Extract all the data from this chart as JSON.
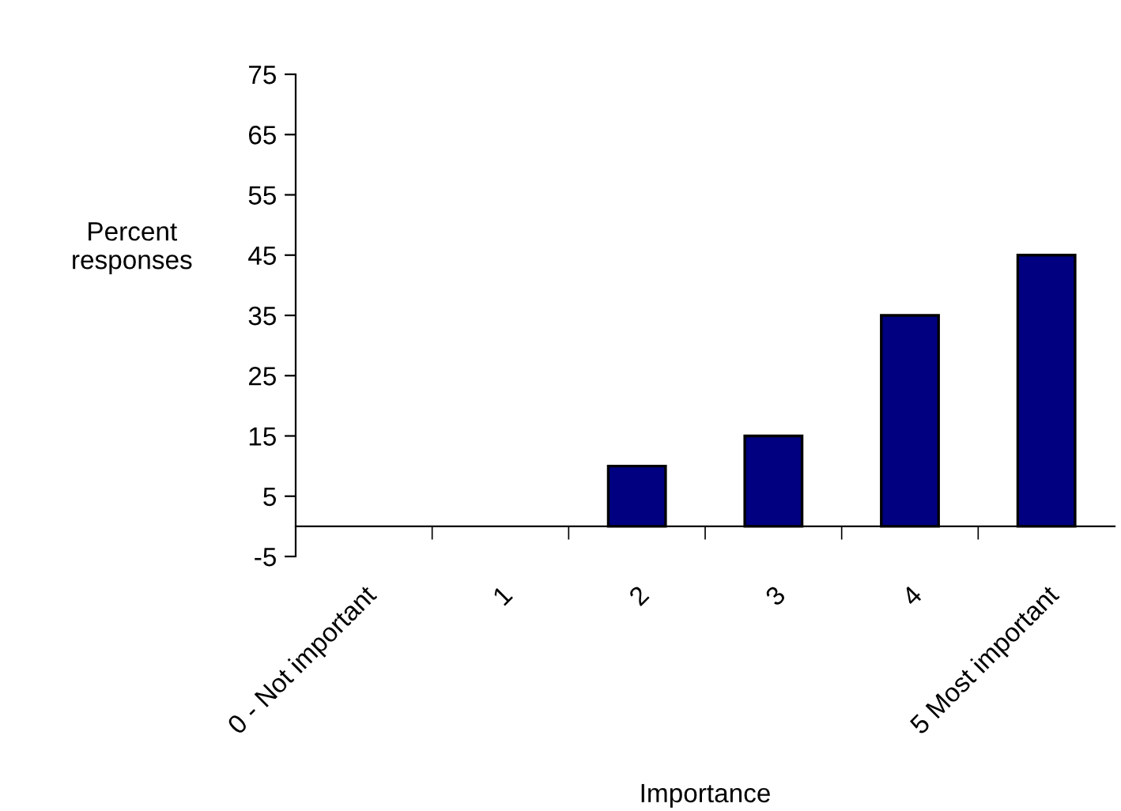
{
  "chart_data": {
    "type": "bar",
    "xlabel": "Importance",
    "ylabel": "Percent\nresponses",
    "categories": [
      "0 - Not important",
      "1",
      "2",
      "3",
      "4",
      "5 Most important"
    ],
    "values": [
      0,
      0,
      10,
      15,
      35,
      45
    ],
    "color": "#000080",
    "ylim": [
      -5,
      75
    ],
    "yticks": [
      -5,
      5,
      15,
      25,
      35,
      45,
      55,
      65,
      75
    ],
    "grid": false,
    "legend": false
  }
}
